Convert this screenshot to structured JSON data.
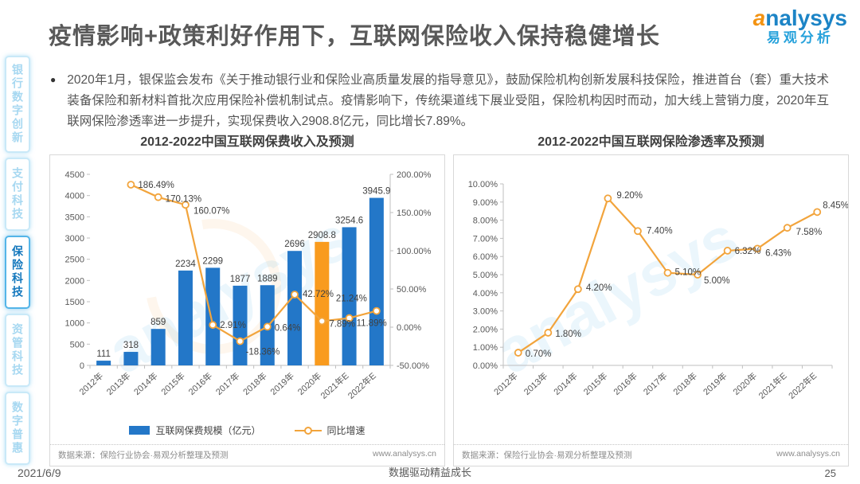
{
  "page": {
    "title": "疫情影响+政策利好作用下，互联网保险收入保持稳健增长",
    "logo": {
      "brand": "analysys",
      "brand_cn": "易观分析"
    },
    "bullet_char": "●",
    "bullet_text": "2020年1月，银保监会发布《关于推动银行业和保险业高质量发展的指导意见》，鼓励保险机构创新发展科技保险，推进首台（套）重大技术装备保险和新材料首批次应用保险补偿机制试点。疫情影响下，传统渠道线下展业受阻，保险机构因时而动，加大线上营销力度，2020年互联网保险渗透率进一步提升，实现保费收入2908.8亿元，同比增长7.89%。",
    "watermark": "analysys",
    "footer": {
      "date": "2021/6/9",
      "tagline": "数据驱动精益成长",
      "page_number": "25"
    }
  },
  "sidebar": {
    "items": [
      {
        "label": "银行数字创新",
        "active": false
      },
      {
        "label": "支付科技",
        "active": false
      },
      {
        "label": "保险科技",
        "active": true
      },
      {
        "label": "资管科技",
        "active": false
      },
      {
        "label": "数字普惠",
        "active": false
      }
    ]
  },
  "chart_data": [
    {
      "type": "bar",
      "title": "2012-2022中国互联网保费收入及预测",
      "categories": [
        "2012年",
        "2013年",
        "2014年",
        "2015年",
        "2016年",
        "2017年",
        "2018年",
        "2019年",
        "2020年",
        "2021年E",
        "2022年E"
      ],
      "series": [
        {
          "name": "互联网保费规模（亿元）",
          "type": "bar",
          "axis": "left",
          "values": [
            111,
            318,
            859,
            2234,
            2299,
            1877,
            1889,
            2696,
            2908.8,
            3254.6,
            3945.9
          ],
          "labels": [
            "111",
            "318",
            "859",
            "2234",
            "2299",
            "1877",
            "1889",
            "2696",
            "2908.8",
            "3254.6",
            "3945.9"
          ],
          "highlight_index": 8
        },
        {
          "name": "同比增速",
          "type": "line",
          "axis": "right",
          "values": [
            null,
            186.49,
            170.13,
            160.07,
            2.91,
            -18.36,
            0.64,
            42.72,
            7.89,
            11.89,
            21.24
          ],
          "labels": [
            "",
            "186.49%",
            "170.13%",
            "160.07%",
            "2.91%",
            "-18.36%",
            "0.64%",
            "42.72%",
            "7.89%",
            "11.89%",
            "21.24%"
          ],
          "label_offsets": [
            [
              0,
              0
            ],
            [
              9,
              4
            ],
            [
              9,
              6
            ],
            [
              10,
              11
            ],
            [
              9,
              4
            ],
            [
              7,
              17
            ],
            [
              9,
              5
            ],
            [
              10,
              3
            ],
            [
              9,
              7
            ],
            [
              9,
              10
            ],
            [
              -51,
              -12
            ]
          ]
        }
      ],
      "left_axis": {
        "min": 0,
        "max": 4500,
        "step": 500,
        "labels": [
          "0",
          "500",
          "1000",
          "1500",
          "2000",
          "2500",
          "3000",
          "3500",
          "4000",
          "4500"
        ]
      },
      "right_axis": {
        "min": -50,
        "max": 200,
        "step": 50,
        "labels": [
          "-50.00%",
          "0.00%",
          "50.00%",
          "100.00%",
          "150.00%",
          "200.00%"
        ]
      },
      "legend_position": "bottom",
      "grid": false,
      "source": "数据来源：保险行业协会·易观分析整理及预测",
      "url": "www.analysys.cn",
      "colors": {
        "bar": "#2377C8",
        "bar_highlight": "#F99B1E",
        "line": "#F2A43C"
      }
    },
    {
      "type": "line",
      "title": "2012-2022中国互联网保险渗透率及预测",
      "categories": [
        "2012年",
        "2013年",
        "2014年",
        "2015年",
        "2016年",
        "2017年",
        "2018年",
        "2019年",
        "2020年",
        "2021年E",
        "2022年E"
      ],
      "series": [
        {
          "name": "互联网保险渗透率",
          "type": "line",
          "axis": "left",
          "values": [
            0.7,
            1.8,
            4.2,
            9.2,
            7.4,
            5.1,
            5.0,
            6.32,
            6.43,
            7.58,
            8.45
          ],
          "labels": [
            "0.70%",
            "1.80%",
            "4.20%",
            "9.20%",
            "7.40%",
            "5.10%",
            "5.00%",
            "6.32%",
            "6.43%",
            "7.58%",
            "8.45%"
          ],
          "label_offsets": [
            [
              9,
              5
            ],
            [
              9,
              5
            ],
            [
              10,
              2
            ],
            [
              11,
              0
            ],
            [
              11,
              3
            ],
            [
              9,
              3
            ],
            [
              8,
              11
            ],
            [
              9,
              4
            ],
            [
              10,
              9
            ],
            [
              11,
              9
            ],
            [
              7,
              -5
            ]
          ]
        }
      ],
      "left_axis": {
        "min": 0,
        "max": 10,
        "step": 1,
        "labels": [
          "0.00%",
          "1.00%",
          "2.00%",
          "3.00%",
          "4.00%",
          "5.00%",
          "6.00%",
          "7.00%",
          "8.00%",
          "9.00%",
          "10.00%"
        ]
      },
      "grid": false,
      "source": "数据来源：保险行业协会·易观分析整理及预测",
      "url": "www.analysys.cn",
      "colors": {
        "line": "#F2A43C"
      }
    }
  ]
}
